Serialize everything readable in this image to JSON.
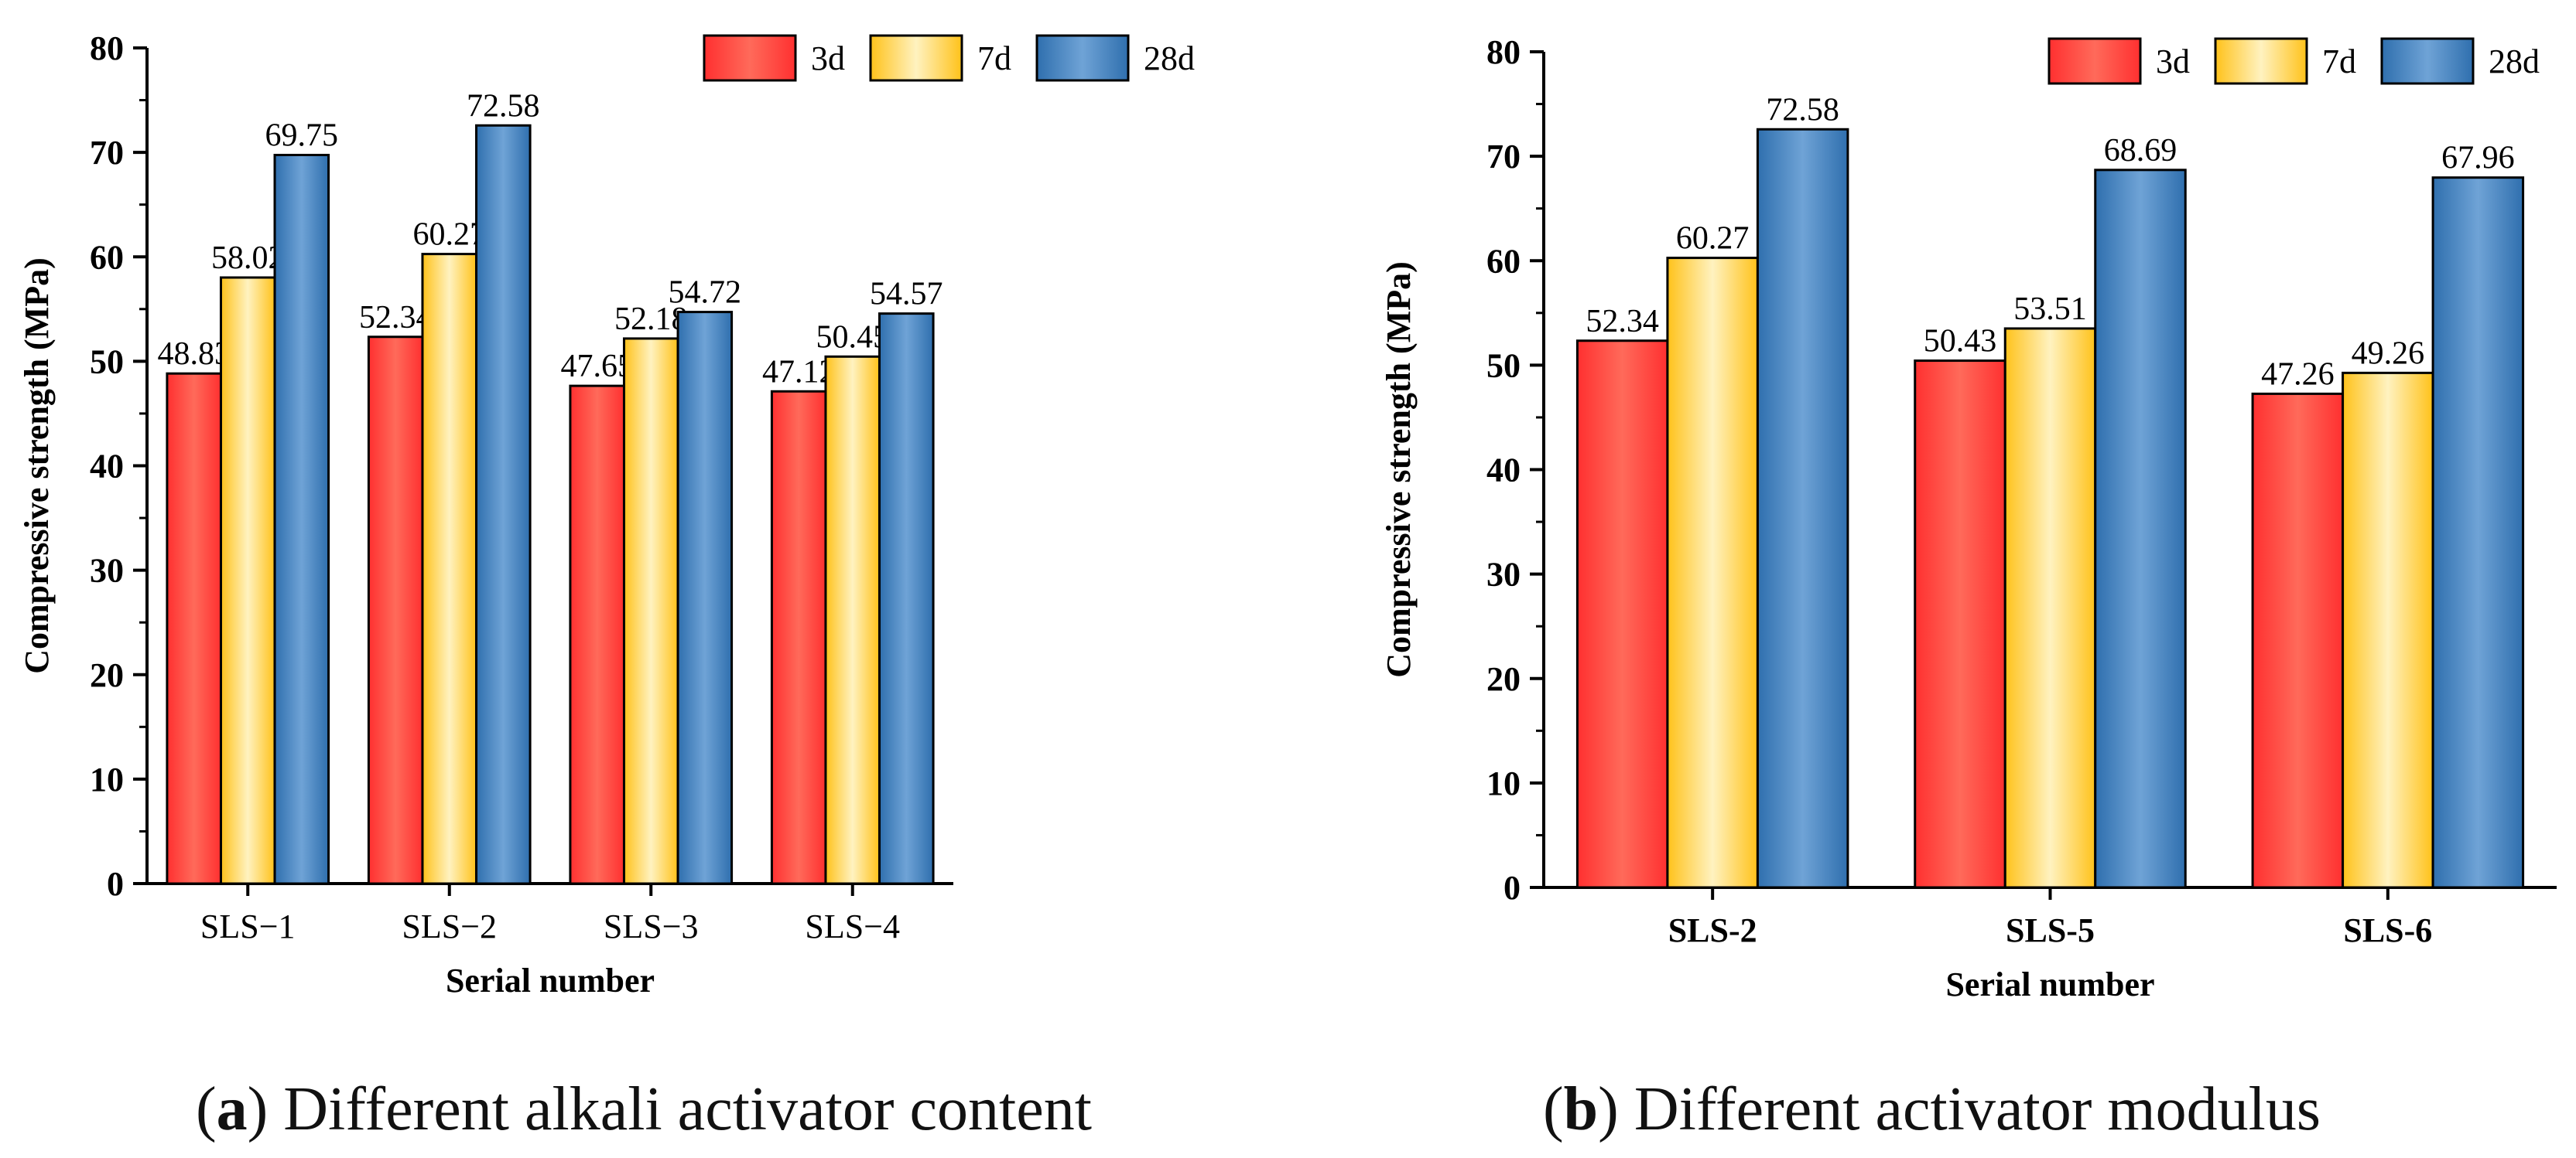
{
  "chart_data": [
    {
      "type": "bar",
      "title": "",
      "xlabel": "Serial number",
      "ylabel": "Compressive strength (MPa)",
      "ylim": [
        0,
        80
      ],
      "yticks": [
        "0",
        "10",
        "20",
        "30",
        "40",
        "50",
        "60",
        "70",
        "80"
      ],
      "categories": [
        "SLS−1",
        "SLS−2",
        "SLS−3",
        "SLS−4"
      ],
      "category_bold": false,
      "series": [
        {
          "name": "3d",
          "values": [
            48.83,
            52.34,
            47.65,
            47.12
          ],
          "labels": [
            "48.83",
            "52.34",
            "47.65",
            "47.12"
          ]
        },
        {
          "name": "7d",
          "values": [
            58.02,
            60.27,
            52.18,
            50.45
          ],
          "labels": [
            "58.02",
            "60.27",
            "52.18",
            "50.45"
          ]
        },
        {
          "name": "28d",
          "values": [
            69.75,
            72.58,
            54.72,
            54.57
          ],
          "labels": [
            "69.75",
            "72.58",
            "54.72",
            "54.57"
          ]
        }
      ],
      "legend_position": "top-right",
      "caption": {
        "letter": "a",
        "text": "Different alkali activator content"
      }
    },
    {
      "type": "bar",
      "title": "",
      "xlabel": "Serial number",
      "ylabel": "Compressive strength (MPa)",
      "ylim": [
        0,
        80
      ],
      "yticks": [
        "0",
        "10",
        "20",
        "30",
        "40",
        "50",
        "60",
        "70",
        "80"
      ],
      "categories": [
        "SLS-2",
        "SLS-5",
        "SLS-6"
      ],
      "category_bold": true,
      "series": [
        {
          "name": "3d",
          "values": [
            52.34,
            50.43,
            47.26
          ],
          "labels": [
            "52.34",
            "50.43",
            "47.26"
          ]
        },
        {
          "name": "7d",
          "values": [
            60.27,
            53.51,
            49.26
          ],
          "labels": [
            "60.27",
            "53.51",
            "49.26"
          ]
        },
        {
          "name": "28d",
          "values": [
            72.58,
            68.69,
            67.96
          ],
          "labels": [
            "72.58",
            "68.69",
            "67.96"
          ]
        }
      ],
      "legend_position": "top-right",
      "caption": {
        "letter": "b",
        "text": "Different activator modulus"
      }
    }
  ],
  "colors": {
    "3d_edge": "#ff3030",
    "3d_center": "#ff6a5a",
    "7d_edge": "#ffc21a",
    "7d_center": "#fff2c0",
    "28d_edge": "#2f6fae",
    "28d_center": "#6fa3d6",
    "axis": "#000000"
  },
  "captions": {
    "a": {
      "prefix": "(",
      "letter": "a",
      "suffix": ") ",
      "text": "Different alkali activator content"
    },
    "b": {
      "prefix": "(",
      "letter": "b",
      "suffix": ") ",
      "text": "Different activator modulus"
    }
  }
}
